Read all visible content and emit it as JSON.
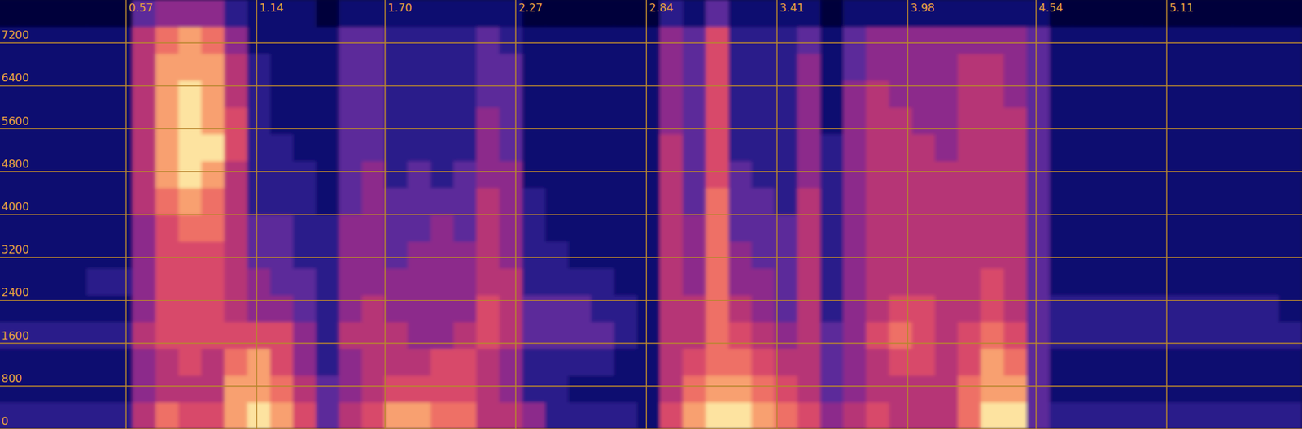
{
  "chart_data": {
    "type": "heatmap",
    "xlim": [
      0.02,
      5.7
    ],
    "xticks": [
      0.57,
      1.14,
      {
        "value": 1.7,
        "label": "1.70"
      },
      2.27,
      2.84,
      3.41,
      3.98,
      4.54,
      5.11
    ],
    "ylim": [
      0,
      8000
    ],
    "yticks": [
      0,
      800,
      1600,
      2400,
      3200,
      4000,
      4800,
      5600,
      6400,
      7200
    ],
    "grid": true,
    "zlim": [
      0,
      9
    ],
    "x": [
      0.05,
      0.15,
      0.25,
      0.35,
      0.45,
      0.55,
      0.65,
      0.75,
      0.85,
      0.95,
      1.05,
      1.15,
      1.25,
      1.35,
      1.45,
      1.55,
      1.65,
      1.75,
      1.85,
      1.95,
      2.05,
      2.15,
      2.25,
      2.35,
      2.45,
      2.55,
      2.65,
      2.75,
      2.85,
      2.95,
      3.05,
      3.15,
      3.25,
      3.35,
      3.45,
      3.55,
      3.65,
      3.75,
      3.85,
      3.95,
      4.05,
      4.15,
      4.25,
      4.35,
      4.45,
      4.55,
      4.65,
      4.75,
      4.85,
      4.95,
      5.05,
      5.15,
      5.25,
      5.35,
      5.45,
      5.55,
      5.65
    ],
    "y": [
      250,
      750,
      1250,
      1750,
      2250,
      2750,
      3250,
      3750,
      4250,
      4750,
      5250,
      5750,
      6250,
      6750,
      7250,
      7750
    ],
    "cells": [
      [
        2,
        1,
        1,
        2,
        1,
        1,
        1,
        1,
        1,
        1,
        1,
        1,
        1,
        1,
        1,
        0
      ],
      [
        2,
        1,
        1,
        2,
        1,
        1,
        1,
        1,
        1,
        1,
        1,
        1,
        1,
        1,
        1,
        0
      ],
      [
        2,
        1,
        1,
        2,
        1,
        1,
        1,
        1,
        1,
        1,
        1,
        1,
        1,
        1,
        1,
        0
      ],
      [
        2,
        1,
        1,
        2,
        1,
        1,
        1,
        1,
        1,
        1,
        1,
        1,
        1,
        1,
        1,
        0
      ],
      [
        2,
        1,
        1,
        2,
        1,
        2,
        1,
        1,
        1,
        1,
        1,
        1,
        1,
        1,
        1,
        0
      ],
      [
        2,
        1,
        1,
        2,
        1,
        2,
        1,
        1,
        1,
        1,
        1,
        1,
        1,
        1,
        1,
        0
      ],
      [
        5,
        4,
        4,
        5,
        4,
        4,
        4,
        4,
        5,
        5,
        5,
        5,
        5,
        5,
        5,
        3
      ],
      [
        7,
        5,
        5,
        6,
        6,
        6,
        6,
        6,
        7,
        8,
        8,
        8,
        8,
        8,
        7,
        4
      ],
      [
        6,
        5,
        6,
        6,
        6,
        6,
        6,
        7,
        8,
        9,
        9,
        9,
        9,
        8,
        8,
        4
      ],
      [
        6,
        5,
        5,
        6,
        6,
        6,
        6,
        7,
        7,
        8,
        9,
        8,
        8,
        8,
        7,
        4
      ],
      [
        8,
        8,
        7,
        6,
        5,
        5,
        5,
        5,
        5,
        5,
        6,
        6,
        5,
        5,
        4,
        2
      ],
      [
        9,
        8,
        8,
        6,
        4,
        4,
        3,
        3,
        2,
        2,
        2,
        2,
        2,
        2,
        1,
        1
      ],
      [
        8,
        7,
        6,
        6,
        4,
        3,
        3,
        3,
        2,
        2,
        2,
        1,
        1,
        1,
        1,
        1
      ],
      [
        6,
        5,
        4,
        4,
        3,
        3,
        2,
        2,
        2,
        2,
        1,
        1,
        1,
        1,
        1,
        1
      ],
      [
        3,
        3,
        2,
        2,
        2,
        2,
        2,
        2,
        1,
        1,
        1,
        1,
        1,
        1,
        1,
        0
      ],
      [
        5,
        4,
        4,
        5,
        4,
        4,
        4,
        4,
        3,
        3,
        3,
        3,
        3,
        3,
        3,
        1
      ],
      [
        6,
        5,
        5,
        5,
        5,
        4,
        4,
        4,
        4,
        4,
        3,
        3,
        3,
        3,
        3,
        1
      ],
      [
        8,
        6,
        5,
        5,
        4,
        4,
        3,
        3,
        3,
        2,
        2,
        2,
        2,
        2,
        2,
        1
      ],
      [
        8,
        6,
        5,
        4,
        4,
        4,
        4,
        3,
        3,
        3,
        2,
        2,
        2,
        2,
        2,
        1
      ],
      [
        7,
        6,
        6,
        4,
        4,
        4,
        4,
        4,
        3,
        2,
        2,
        2,
        2,
        2,
        2,
        1
      ],
      [
        7,
        6,
        6,
        5,
        4,
        4,
        4,
        3,
        3,
        3,
        2,
        2,
        2,
        2,
        2,
        1
      ],
      [
        5,
        5,
        5,
        6,
        6,
        5,
        5,
        5,
        5,
        4,
        4,
        4,
        3,
        3,
        3,
        1
      ],
      [
        5,
        4,
        4,
        5,
        5,
        5,
        4,
        4,
        4,
        4,
        3,
        3,
        3,
        3,
        2,
        1
      ],
      [
        4,
        2,
        2,
        3,
        3,
        2,
        2,
        2,
        2,
        1,
        1,
        1,
        1,
        1,
        1,
        0
      ],
      [
        2,
        2,
        2,
        3,
        3,
        2,
        2,
        1,
        1,
        1,
        1,
        1,
        1,
        1,
        1,
        0
      ],
      [
        2,
        1,
        2,
        3,
        3,
        2,
        1,
        1,
        1,
        1,
        1,
        1,
        1,
        1,
        1,
        0
      ],
      [
        2,
        1,
        2,
        3,
        2,
        2,
        1,
        1,
        1,
        1,
        1,
        1,
        1,
        1,
        1,
        0
      ],
      [
        2,
        1,
        1,
        2,
        2,
        1,
        1,
        1,
        1,
        1,
        1,
        1,
        1,
        1,
        1,
        0
      ],
      [
        1,
        1,
        1,
        1,
        1,
        1,
        1,
        1,
        1,
        1,
        1,
        1,
        1,
        1,
        1,
        0
      ],
      [
        6,
        5,
        5,
        5,
        5,
        5,
        5,
        5,
        5,
        5,
        5,
        4,
        4,
        4,
        4,
        2
      ],
      [
        8,
        7,
        6,
        5,
        5,
        4,
        4,
        4,
        3,
        3,
        3,
        3,
        3,
        3,
        3,
        1
      ],
      [
        9,
        8,
        7,
        7,
        7,
        7,
        7,
        7,
        7,
        6,
        6,
        6,
        6,
        6,
        6,
        3
      ],
      [
        9,
        8,
        7,
        6,
        5,
        4,
        4,
        3,
        3,
        3,
        2,
        2,
        2,
        2,
        2,
        1
      ],
      [
        8,
        7,
        6,
        5,
        4,
        4,
        3,
        3,
        3,
        2,
        2,
        2,
        2,
        2,
        2,
        1
      ],
      [
        7,
        6,
        5,
        4,
        3,
        3,
        3,
        3,
        2,
        2,
        2,
        2,
        2,
        2,
        2,
        1
      ],
      [
        6,
        5,
        5,
        5,
        5,
        5,
        5,
        5,
        5,
        4,
        4,
        4,
        4,
        4,
        3,
        1
      ],
      [
        4,
        3,
        3,
        3,
        2,
        2,
        2,
        2,
        2,
        2,
        2,
        1,
        1,
        1,
        1,
        0
      ],
      [
        5,
        4,
        4,
        4,
        4,
        4,
        4,
        4,
        4,
        4,
        4,
        4,
        4,
        3,
        3,
        1
      ],
      [
        6,
        5,
        5,
        6,
        5,
        5,
        5,
        5,
        5,
        5,
        5,
        5,
        5,
        4,
        4,
        1
      ],
      [
        5,
        5,
        6,
        7,
        6,
        5,
        5,
        5,
        5,
        5,
        5,
        5,
        4,
        4,
        4,
        1
      ],
      [
        5,
        5,
        6,
        6,
        6,
        5,
        5,
        5,
        5,
        5,
        5,
        4,
        4,
        4,
        4,
        1
      ],
      [
        5,
        5,
        5,
        5,
        5,
        5,
        5,
        5,
        5,
        5,
        4,
        4,
        4,
        4,
        4,
        1
      ],
      [
        7,
        7,
        6,
        6,
        5,
        5,
        5,
        5,
        5,
        5,
        5,
        5,
        5,
        5,
        4,
        1
      ],
      [
        9,
        8,
        8,
        7,
        6,
        6,
        5,
        5,
        5,
        5,
        5,
        5,
        5,
        5,
        4,
        1
      ],
      [
        9,
        8,
        7,
        6,
        5,
        5,
        5,
        5,
        5,
        5,
        5,
        5,
        4,
        4,
        4,
        1
      ],
      [
        3,
        3,
        3,
        3,
        3,
        3,
        3,
        3,
        3,
        3,
        3,
        3,
        3,
        3,
        3,
        1
      ],
      [
        2,
        1,
        1,
        2,
        2,
        1,
        1,
        1,
        1,
        1,
        1,
        1,
        1,
        1,
        1,
        0
      ],
      [
        2,
        1,
        1,
        2,
        2,
        1,
        1,
        1,
        1,
        1,
        1,
        1,
        1,
        1,
        1,
        0
      ],
      [
        2,
        1,
        1,
        2,
        2,
        1,
        1,
        1,
        1,
        1,
        1,
        1,
        1,
        1,
        1,
        0
      ],
      [
        2,
        1,
        1,
        2,
        2,
        1,
        1,
        1,
        1,
        1,
        1,
        1,
        1,
        1,
        1,
        0
      ],
      [
        2,
        1,
        1,
        2,
        2,
        1,
        1,
        1,
        1,
        1,
        1,
        1,
        1,
        1,
        1,
        0
      ],
      [
        2,
        1,
        1,
        2,
        2,
        1,
        1,
        1,
        1,
        1,
        1,
        1,
        1,
        1,
        1,
        0
      ],
      [
        2,
        1,
        1,
        2,
        2,
        1,
        1,
        1,
        1,
        1,
        1,
        1,
        1,
        1,
        1,
        0
      ],
      [
        2,
        1,
        1,
        2,
        2,
        1,
        1,
        1,
        1,
        1,
        1,
        1,
        1,
        1,
        1,
        0
      ],
      [
        2,
        1,
        1,
        2,
        2,
        1,
        1,
        1,
        1,
        1,
        1,
        1,
        1,
        1,
        1,
        0
      ],
      [
        2,
        1,
        1,
        2,
        2,
        1,
        1,
        1,
        1,
        1,
        1,
        1,
        1,
        1,
        1,
        0
      ],
      [
        2,
        1,
        1,
        2,
        1,
        1,
        1,
        1,
        1,
        1,
        1,
        1,
        1,
        1,
        1,
        0
      ]
    ]
  }
}
